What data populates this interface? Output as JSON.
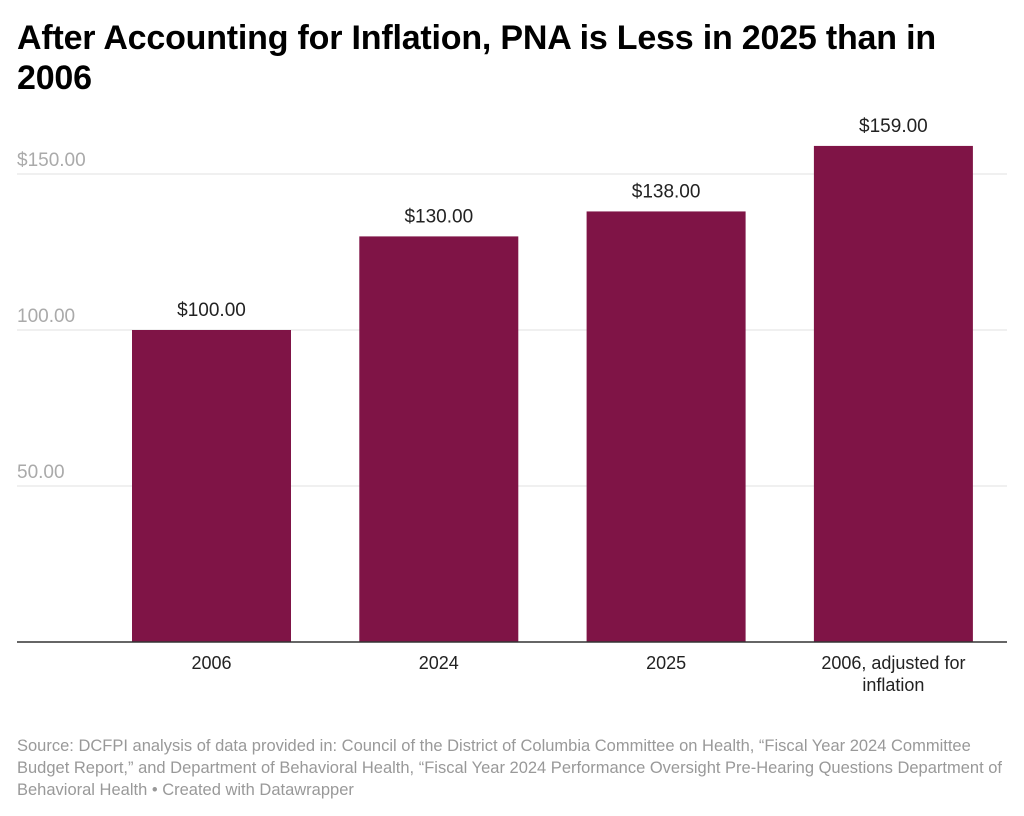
{
  "title": "After Accounting for Inflation, PNA is Less in 2025 than in 2006",
  "source": "Source: DCFPI analysis of data provided in: Council of the District of Columbia Committee on Health, “Fiscal Year 2024 Committee Budget Report,” and Department of Behavioral Health, “Fiscal Year 2024 Performance Oversight Pre-Hearing Questions Department of Behavioral Health • Created with Datawrapper",
  "colors": {
    "bar": "#7f1446",
    "grid": "#e2e2e2",
    "axis": "#333333"
  },
  "chart_data": {
    "type": "bar",
    "title": "After Accounting for Inflation, PNA is Less in 2025 than in 2006",
    "categories": [
      "2006",
      "2024",
      "2025",
      "2006, adjusted for inflation"
    ],
    "category_lines": [
      [
        "2006"
      ],
      [
        "2024"
      ],
      [
        "2025"
      ],
      [
        "2006, adjusted for",
        "inflation"
      ]
    ],
    "values": [
      100,
      130,
      138,
      159
    ],
    "value_labels": [
      "$100.00",
      "$130.00",
      "$138.00",
      "$159.00"
    ],
    "y_ticks": [
      50,
      100,
      150
    ],
    "y_tick_labels": [
      "50.00",
      "100.00",
      "$150.00"
    ],
    "ylim": [
      0,
      150
    ],
    "grid": true,
    "legend": "none",
    "xlabel": "",
    "ylabel": ""
  }
}
